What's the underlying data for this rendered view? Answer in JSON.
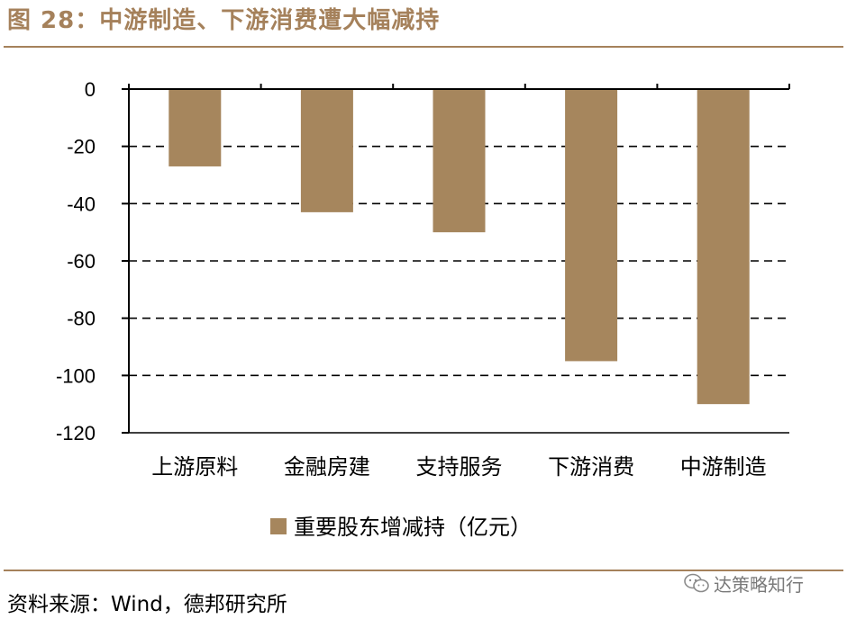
{
  "title": "图 28：中游制造、下游消费遭大幅减持",
  "source": "资料来源：Wind，德邦研究所",
  "watermark": "达策略知行",
  "chart_data": {
    "type": "bar",
    "categories": [
      "上游原料",
      "金融房建",
      "支持服务",
      "下游消费",
      "中游制造"
    ],
    "series": [
      {
        "name": "重要股东增减持（亿元）",
        "values": [
          -27,
          -43,
          -50,
          -95,
          -110
        ]
      }
    ],
    "ylim": [
      -120,
      0
    ],
    "yticks": [
      "0",
      "-20",
      "-40",
      "-60",
      "-80",
      "-100",
      "-120"
    ],
    "ytick_values": [
      0,
      -20,
      -40,
      -60,
      -80,
      -100,
      -120
    ],
    "grid": true,
    "legend_position": "bottom",
    "bar_color": "#a6865d",
    "axis_color": "#000000"
  }
}
